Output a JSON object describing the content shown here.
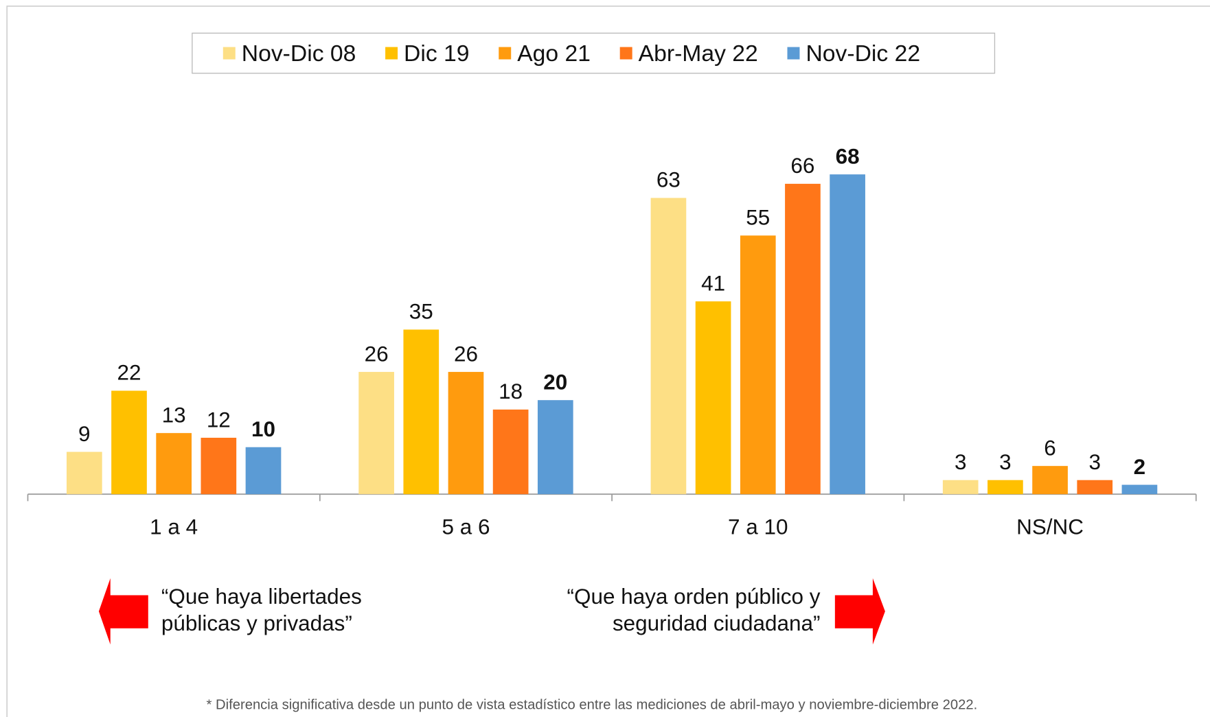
{
  "chart_data": {
    "type": "bar",
    "categories": [
      "1 a 4",
      "5 a 6",
      "7 a 10",
      "NS/NC"
    ],
    "series": [
      {
        "name": "Nov-Dic 08",
        "color": "#FDDF85",
        "values": [
          9,
          26,
          63,
          3
        ]
      },
      {
        "name": "Dic 19",
        "color": "#FFC000",
        "values": [
          22,
          35,
          41,
          3
        ]
      },
      {
        "name": "Ago 21",
        "color": "#FF9B0E",
        "values": [
          13,
          26,
          55,
          6
        ]
      },
      {
        "name": "Abr-May 22",
        "color": "#FF7619",
        "values": [
          12,
          18,
          66,
          3
        ]
      },
      {
        "name": "Nov-Dic 22",
        "color": "#5B9BD5",
        "values": [
          10,
          20,
          68,
          2
        ]
      }
    ],
    "highlight_series": 4,
    "ylim": [
      0,
      100
    ],
    "legend": "top",
    "annotations": [
      {
        "lines": [
          "“Que haya libertades",
          "públicas y privadas”"
        ],
        "arrow": "left"
      },
      {
        "lines": [
          "“Que haya orden público y",
          "seguridad ciudadana”"
        ],
        "arrow": "right"
      }
    ],
    "footnote": "* Diferencia significativa desde un punto de vista estadístico entre las mediciones de abril-mayo y noviembre-diciembre 2022."
  }
}
